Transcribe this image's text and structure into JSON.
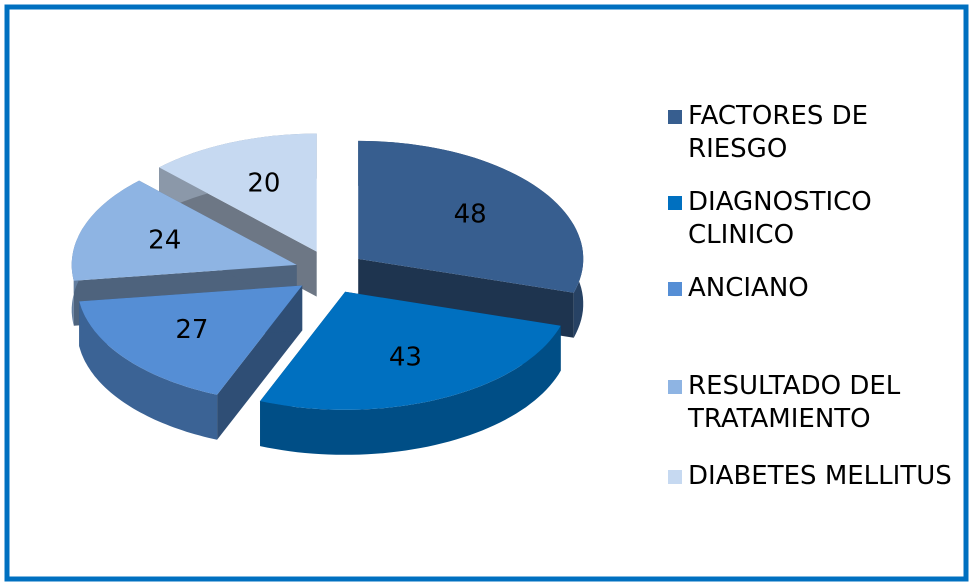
{
  "chart_data": {
    "type": "pie",
    "categories": [
      "FACTORES DE RIESGO",
      "DIAGNOSTICO CLINICO",
      "ANCIANO",
      "RESULTADO DEL TRATAMIENTO",
      "DIABETES MELLITUS"
    ],
    "values": [
      48,
      43,
      27,
      24,
      20
    ],
    "colors": [
      "#375e8f",
      "#0070c0",
      "#558ed5",
      "#8eb4e3",
      "#c6d9f1"
    ],
    "legend": "right"
  }
}
